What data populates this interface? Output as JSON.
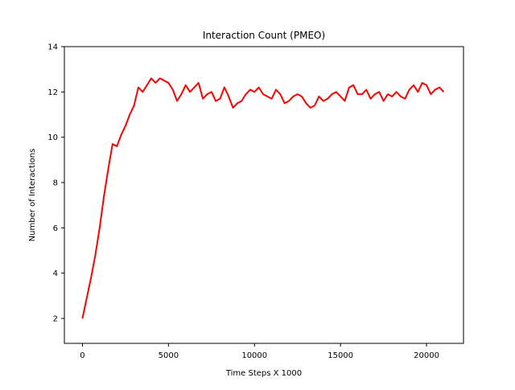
{
  "chart_data": {
    "type": "line",
    "title": "Interaction Count (PMEO)",
    "xlabel": "Time Steps X 1000",
    "ylabel": "Number of Interactions",
    "xlim": [
      -1050,
      22150
    ],
    "ylim": [
      0.9,
      14.0
    ],
    "xticks": [
      0,
      5000,
      10000,
      15000,
      20000
    ],
    "xtick_labels": [
      "0",
      "5000",
      "10000",
      "15000",
      "20000"
    ],
    "yticks": [
      2,
      4,
      6,
      8,
      10,
      12,
      14
    ],
    "ytick_labels": [
      "2",
      "4",
      "6",
      "8",
      "10",
      "12",
      "14"
    ],
    "grid": false,
    "legend": "none",
    "series": [
      {
        "color": "#ff0000",
        "x": [
          0,
          250,
          500,
          750,
          1000,
          1250,
          1500,
          1750,
          2000,
          2250,
          2500,
          2750,
          3000,
          3250,
          3500,
          3750,
          4000,
          4250,
          4500,
          4750,
          5000,
          5250,
          5500,
          5750,
          6000,
          6250,
          6500,
          6750,
          7000,
          7250,
          7500,
          7750,
          8000,
          8250,
          8500,
          8750,
          9000,
          9250,
          9500,
          9750,
          10000,
          10250,
          10500,
          10750,
          11000,
          11250,
          11500,
          11750,
          12000,
          12250,
          12500,
          12750,
          13000,
          13250,
          13500,
          13750,
          14000,
          14250,
          14500,
          14750,
          15000,
          15250,
          15500,
          15750,
          16000,
          16250,
          16500,
          16750,
          17000,
          17250,
          17500,
          17750,
          18000,
          18250,
          18500,
          18750,
          19000,
          19250,
          19500,
          19750,
          20000,
          20250,
          20500,
          20750,
          21000
        ],
        "y": [
          2.0,
          2.9,
          3.8,
          4.8,
          6.0,
          7.4,
          8.6,
          9.7,
          9.6,
          10.1,
          10.5,
          11.0,
          11.4,
          12.2,
          12.0,
          12.3,
          12.6,
          12.4,
          12.6,
          12.5,
          12.4,
          12.1,
          11.6,
          11.9,
          12.3,
          12.0,
          12.2,
          12.4,
          11.7,
          11.9,
          12.0,
          11.6,
          11.7,
          12.2,
          11.8,
          11.3,
          11.5,
          11.6,
          11.9,
          12.1,
          12.0,
          12.2,
          11.9,
          11.8,
          11.7,
          12.1,
          11.9,
          11.5,
          11.6,
          11.8,
          11.9,
          11.8,
          11.5,
          11.3,
          11.4,
          11.8,
          11.6,
          11.7,
          11.9,
          12.0,
          11.8,
          11.6,
          12.2,
          12.3,
          11.9,
          11.9,
          12.1,
          11.7,
          11.9,
          12.0,
          11.6,
          11.9,
          11.8,
          12.0,
          11.8,
          11.7,
          12.1,
          12.3,
          12.0,
          12.4,
          12.3,
          11.9,
          12.1,
          12.2,
          12.0
        ]
      }
    ]
  }
}
